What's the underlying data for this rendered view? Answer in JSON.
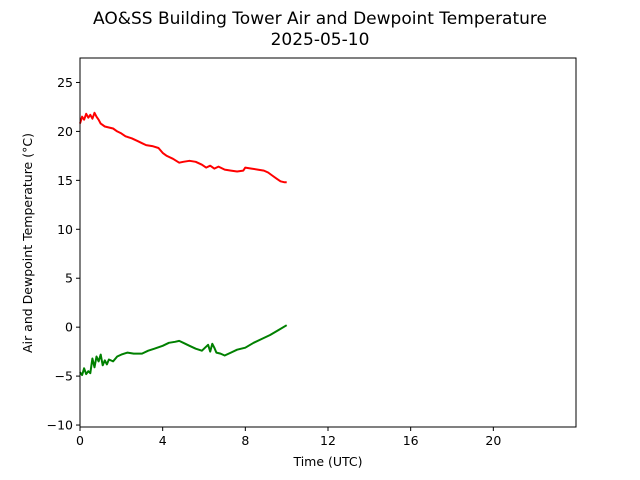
{
  "chart_data": {
    "type": "line",
    "title": "AO&SS Building Tower Air and Dewpoint Temperature",
    "subtitle": "2025-05-10",
    "xlabel": "Time (UTC)",
    "ylabel": "Air and Dewpoint Temperature (°C)",
    "xlim": [
      0,
      24
    ],
    "ylim": [
      -10.2,
      27.5
    ],
    "xticks": [
      0,
      4,
      8,
      12,
      16,
      20
    ],
    "yticks": [
      -10,
      -5,
      0,
      5,
      10,
      15,
      20,
      25
    ],
    "grid": false,
    "legend": "none",
    "series": [
      {
        "color": "#ff0000",
        "x": [
          0,
          0.1,
          0.2,
          0.3,
          0.4,
          0.5,
          0.6,
          0.7,
          0.8,
          0.9,
          1.0,
          1.2,
          1.4,
          1.6,
          1.8,
          2.0,
          2.2,
          2.5,
          2.8,
          3.0,
          3.2,
          3.5,
          3.8,
          4.0,
          4.2,
          4.5,
          4.8,
          5.0,
          5.3,
          5.6,
          5.9,
          6.1,
          6.3,
          6.5,
          6.7,
          7.0,
          7.3,
          7.6,
          7.9,
          8.0,
          8.3,
          8.6,
          8.9,
          9.1,
          9.3,
          9.5,
          9.7,
          9.9,
          10.0
        ],
        "values": [
          20.8,
          21.5,
          21.2,
          21.8,
          21.4,
          21.7,
          21.3,
          21.9,
          21.5,
          21.2,
          20.8,
          20.5,
          20.4,
          20.3,
          20.0,
          19.8,
          19.5,
          19.3,
          19.0,
          18.8,
          18.6,
          18.5,
          18.3,
          17.8,
          17.5,
          17.2,
          16.8,
          16.9,
          17.0,
          16.9,
          16.6,
          16.3,
          16.5,
          16.2,
          16.4,
          16.1,
          16.0,
          15.9,
          16.0,
          16.3,
          16.2,
          16.1,
          16.0,
          15.8,
          15.5,
          15.2,
          14.9,
          14.8,
          14.8
        ]
      },
      {
        "color": "#008000",
        "x": [
          0,
          0.1,
          0.2,
          0.3,
          0.4,
          0.5,
          0.6,
          0.7,
          0.8,
          0.9,
          1.0,
          1.1,
          1.2,
          1.3,
          1.4,
          1.6,
          1.8,
          2.0,
          2.3,
          2.6,
          3.0,
          3.3,
          3.6,
          4.0,
          4.3,
          4.6,
          4.8,
          5.0,
          5.3,
          5.6,
          5.9,
          6.1,
          6.2,
          6.3,
          6.4,
          6.5,
          6.6,
          6.8,
          7.0,
          7.3,
          7.6,
          8.0,
          8.4,
          8.8,
          9.2,
          9.6,
          10.0
        ],
        "values": [
          -4.6,
          -4.9,
          -4.2,
          -4.8,
          -4.5,
          -4.7,
          -3.2,
          -4.1,
          -3.0,
          -3.5,
          -2.8,
          -3.9,
          -3.4,
          -3.8,
          -3.3,
          -3.5,
          -3.0,
          -2.8,
          -2.6,
          -2.7,
          -2.7,
          -2.4,
          -2.2,
          -1.9,
          -1.6,
          -1.5,
          -1.4,
          -1.6,
          -1.9,
          -2.2,
          -2.4,
          -2.0,
          -1.8,
          -2.5,
          -1.7,
          -2.1,
          -2.6,
          -2.7,
          -2.9,
          -2.6,
          -2.3,
          -2.1,
          -1.6,
          -1.2,
          -0.8,
          -0.3,
          0.2
        ]
      }
    ]
  }
}
